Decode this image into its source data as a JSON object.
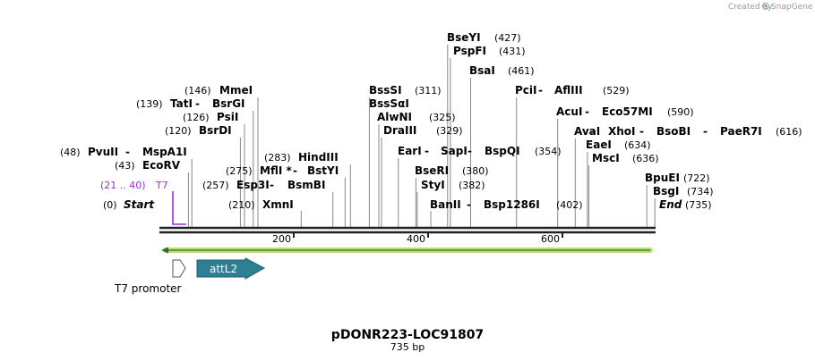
{
  "credit": {
    "text": "Created by",
    "brand": "SnapGene"
  },
  "title": "pDONR223-LOC91807",
  "length_label": "735 bp",
  "sequence_length": 735,
  "colors": {
    "feature_t7": "#9a2fd0",
    "feature_attl2": "#2e7f94",
    "green_arrow": "#b5e07a",
    "axis": "#222222"
  },
  "ticks": [
    "200",
    "400",
    "600"
  ],
  "enzymes": [
    {
      "name": "Start",
      "pos": "(0)",
      "site": 0,
      "italic": true,
      "side": "left"
    },
    {
      "name": "PvuII",
      "pos": "(48)",
      "site": 48,
      "side": "left",
      "joiner": " - ",
      "name2": "MspA1I"
    },
    {
      "name": "EcoRV",
      "pos": "(43)",
      "site": 43,
      "side": "left"
    },
    {
      "name": "BsrDI",
      "pos": "(120)",
      "site": 120,
      "side": "left"
    },
    {
      "name": "PsiI",
      "pos": "(126)",
      "site": 126,
      "side": "left"
    },
    {
      "name": "TatI",
      "pos": "(139)",
      "site": 139,
      "side": "left",
      "joiner": " - ",
      "name2": "BsrGI"
    },
    {
      "name": "MmeI",
      "pos": "(146)",
      "site": 146,
      "side": "left"
    },
    {
      "name": "XmnI",
      "pos": "(210)",
      "site": 210,
      "side": "left"
    },
    {
      "name": "Esp3I",
      "pos": "(257)",
      "site": 257,
      "side": "left",
      "joiner": " - ",
      "name2": "BsmBI"
    },
    {
      "name": "MflI *",
      "pos": "(275)",
      "site": 275,
      "side": "left",
      "joiner": " - ",
      "name2": "BstYI"
    },
    {
      "name": "HindIII",
      "pos": "(283)",
      "site": 283,
      "side": "left"
    },
    {
      "name": "BssSI",
      "pos": "(311)",
      "site": 311,
      "side": "right"
    },
    {
      "name": "BssSαI",
      "pos": "",
      "site": 311,
      "side": "right"
    },
    {
      "name": "AlwNI",
      "pos": "(325)",
      "site": 325,
      "side": "right"
    },
    {
      "name": "DraIII",
      "pos": "(329)",
      "site": 329,
      "side": "right"
    },
    {
      "name": "EarI",
      "pos": "(354)",
      "site": 354,
      "side": "right",
      "joiner": " - ",
      "name2": "SapI",
      "joiner2": " - ",
      "name3": "BspQI"
    },
    {
      "name": "BseRI",
      "pos": "(380)",
      "site": 380,
      "side": "right"
    },
    {
      "name": "StyI",
      "pos": "(382)",
      "site": 382,
      "side": "right"
    },
    {
      "name": "BanII",
      "pos": "(402)",
      "site": 402,
      "side": "right",
      "joiner": " - ",
      "name2": "Bsp1286I"
    },
    {
      "name": "BseYI",
      "pos": "(427)",
      "site": 427,
      "side": "right"
    },
    {
      "name": "PspFI",
      "pos": "(431)",
      "site": 431,
      "side": "right"
    },
    {
      "name": "BsaI",
      "pos": "(461)",
      "site": 461,
      "side": "right"
    },
    {
      "name": "PciI",
      "pos": "(529)",
      "site": 529,
      "side": "right",
      "joiner": " - ",
      "name2": "AflIII"
    },
    {
      "name": "AcuI",
      "pos": "(590)",
      "site": 590,
      "side": "right",
      "joiner": " - ",
      "name2": "Eco57MI"
    },
    {
      "name": "AvaI",
      "pos": "(616)",
      "site": 616,
      "side": "right",
      "joiner": " - ",
      "name2": "XhoI",
      "joiner2": " - ",
      "name3": "BsoBI",
      "joiner3": " - ",
      "name4": "PaeR7I"
    },
    {
      "name": "EaeI",
      "pos": "(634)",
      "site": 634,
      "side": "right"
    },
    {
      "name": "MscI",
      "pos": "(636)",
      "site": 636,
      "side": "right"
    },
    {
      "name": "BpuEI",
      "pos": "(722)",
      "site": 722,
      "side": "right"
    },
    {
      "name": "BsgI",
      "pos": "(734)",
      "site": 734,
      "side": "right"
    },
    {
      "name": "End",
      "pos": "(735)",
      "site": 735,
      "italic": true,
      "side": "right"
    }
  ],
  "features": [
    {
      "name": "T7",
      "range": "(21 .. 40)",
      "start": 21,
      "end": 40,
      "type": "primer"
    },
    {
      "name": "T7 promoter",
      "start": 21,
      "end": 40,
      "type": "promoter"
    },
    {
      "name": "attL2",
      "start": 55,
      "end": 155,
      "type": "misc"
    }
  ]
}
